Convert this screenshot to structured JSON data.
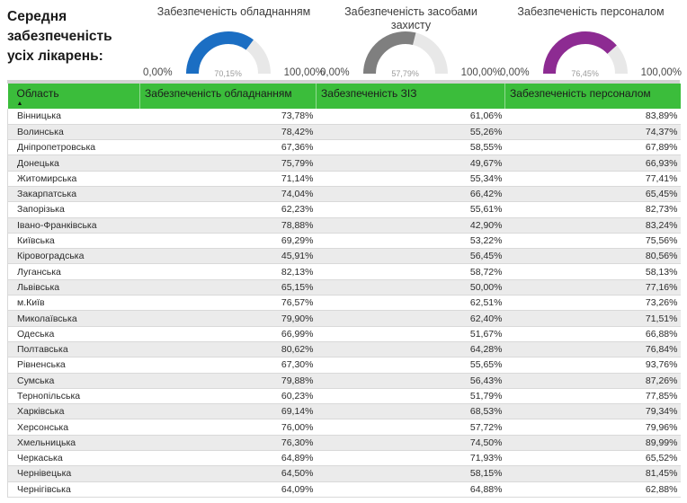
{
  "header": {
    "title": "Середня\nзабезпеченість\nусіх лікарень:"
  },
  "gauges": [
    {
      "title": "Забезпеченість обладнанням",
      "value": 70.15,
      "value_label": "70,15%",
      "min_label": "0,00%",
      "max_label": "100,00%",
      "color": "#1b6ec3"
    },
    {
      "title": "Забезпеченість засобами захисту",
      "value": 57.79,
      "value_label": "57,79%",
      "min_label": "0,00%",
      "max_label": "100,00%",
      "color": "#7f7f7f"
    },
    {
      "title": "Забезпеченість персоналом",
      "value": 76.45,
      "value_label": "76,45%",
      "min_label": "0,00%",
      "max_label": "100,00%",
      "color": "#8d2b92"
    }
  ],
  "table": {
    "columns": [
      "Область",
      "Забезпеченість обладнанням",
      "Забезпеченість ЗІЗ",
      "Забезпеченість персоналом"
    ],
    "sort_icon": "▲",
    "rows": [
      {
        "region": "Вінницька",
        "equipment": "73,78%",
        "ppe": "61,06%",
        "personnel": "83,89%"
      },
      {
        "region": "Волинська",
        "equipment": "78,42%",
        "ppe": "55,26%",
        "personnel": "74,37%"
      },
      {
        "region": "Дніпропетровська",
        "equipment": "67,36%",
        "ppe": "58,55%",
        "personnel": "67,89%"
      },
      {
        "region": "Донецька",
        "equipment": "75,79%",
        "ppe": "49,67%",
        "personnel": "66,93%"
      },
      {
        "region": "Житомирська",
        "equipment": "71,14%",
        "ppe": "55,34%",
        "personnel": "77,41%"
      },
      {
        "region": "Закарпатська",
        "equipment": "74,04%",
        "ppe": "66,42%",
        "personnel": "65,45%"
      },
      {
        "region": "Запорізька",
        "equipment": "62,23%",
        "ppe": "55,61%",
        "personnel": "82,73%"
      },
      {
        "region": "Івано-Франківська",
        "equipment": "78,88%",
        "ppe": "42,90%",
        "personnel": "83,24%"
      },
      {
        "region": "Київська",
        "equipment": "69,29%",
        "ppe": "53,22%",
        "personnel": "75,56%"
      },
      {
        "region": "Кіровоградська",
        "equipment": "45,91%",
        "ppe": "56,45%",
        "personnel": "80,56%"
      },
      {
        "region": "Луганська",
        "equipment": "82,13%",
        "ppe": "58,72%",
        "personnel": "58,13%"
      },
      {
        "region": "Львівська",
        "equipment": "65,15%",
        "ppe": "50,00%",
        "personnel": "77,16%"
      },
      {
        "region": "м.Київ",
        "equipment": "76,57%",
        "ppe": "62,51%",
        "personnel": "73,26%"
      },
      {
        "region": "Миколаївська",
        "equipment": "79,90%",
        "ppe": "62,40%",
        "personnel": "71,51%"
      },
      {
        "region": "Одеська",
        "equipment": "66,99%",
        "ppe": "51,67%",
        "personnel": "66,88%"
      },
      {
        "region": "Полтавська",
        "equipment": "80,62%",
        "ppe": "64,28%",
        "personnel": "76,84%"
      },
      {
        "region": "Рівненська",
        "equipment": "67,30%",
        "ppe": "55,65%",
        "personnel": "93,76%"
      },
      {
        "region": "Сумська",
        "equipment": "79,88%",
        "ppe": "56,43%",
        "personnel": "87,26%"
      },
      {
        "region": "Тернопільська",
        "equipment": "60,23%",
        "ppe": "51,79%",
        "personnel": "77,85%"
      },
      {
        "region": "Харківська",
        "equipment": "69,14%",
        "ppe": "68,53%",
        "personnel": "79,34%"
      },
      {
        "region": "Херсонська",
        "equipment": "76,00%",
        "ppe": "57,72%",
        "personnel": "79,96%"
      },
      {
        "region": "Хмельницька",
        "equipment": "76,30%",
        "ppe": "74,50%",
        "personnel": "89,99%"
      },
      {
        "region": "Черкаська",
        "equipment": "64,89%",
        "ppe": "71,93%",
        "personnel": "65,52%"
      },
      {
        "region": "Чернівецька",
        "equipment": "64,50%",
        "ppe": "58,15%",
        "personnel": "81,45%"
      },
      {
        "region": "Чернігівська",
        "equipment": "64,09%",
        "ppe": "64,88%",
        "personnel": "62,88%"
      }
    ]
  },
  "chart_data": [
    {
      "type": "gauge",
      "title": "Забезпеченість обладнанням",
      "value": 70.15,
      "min": 0,
      "max": 100,
      "unit": "%",
      "min_label": "0,00%",
      "max_label": "100,00%",
      "color": "#1b6ec3"
    },
    {
      "type": "gauge",
      "title": "Забезпеченість засобами захисту",
      "value": 57.79,
      "min": 0,
      "max": 100,
      "unit": "%",
      "min_label": "0,00%",
      "max_label": "100,00%",
      "color": "#7f7f7f"
    },
    {
      "type": "gauge",
      "title": "Забезпеченість персоналом",
      "value": 76.45,
      "min": 0,
      "max": 100,
      "unit": "%",
      "min_label": "0,00%",
      "max_label": "100,00%",
      "color": "#8d2b92"
    },
    {
      "type": "table",
      "columns": [
        "Область",
        "Забезпеченість обладнанням",
        "Забезпеченість ЗІЗ",
        "Забезпеченість персоналом"
      ],
      "sort": {
        "column": "Область",
        "direction": "ascending"
      },
      "rows": [
        [
          "Вінницька",
          73.78,
          61.06,
          83.89
        ],
        [
          "Волинська",
          78.42,
          55.26,
          74.37
        ],
        [
          "Дніпропетровська",
          67.36,
          58.55,
          67.89
        ],
        [
          "Донецька",
          75.79,
          49.67,
          66.93
        ],
        [
          "Житомирська",
          71.14,
          55.34,
          77.41
        ],
        [
          "Закарпатська",
          74.04,
          66.42,
          65.45
        ],
        [
          "Запорізька",
          62.23,
          55.61,
          82.73
        ],
        [
          "Івано-Франківська",
          78.88,
          42.9,
          83.24
        ],
        [
          "Київська",
          69.29,
          53.22,
          75.56
        ],
        [
          "Кіровоградська",
          45.91,
          56.45,
          80.56
        ],
        [
          "Луганська",
          82.13,
          58.72,
          58.13
        ],
        [
          "Львівська",
          65.15,
          50.0,
          77.16
        ],
        [
          "м.Київ",
          76.57,
          62.51,
          73.26
        ],
        [
          "Миколаївська",
          79.9,
          62.4,
          71.51
        ],
        [
          "Одеська",
          66.99,
          51.67,
          66.88
        ],
        [
          "Полтавська",
          80.62,
          64.28,
          76.84
        ],
        [
          "Рівненська",
          67.3,
          55.65,
          93.76
        ],
        [
          "Сумська",
          79.88,
          56.43,
          87.26
        ],
        [
          "Тернопільська",
          60.23,
          51.79,
          77.85
        ],
        [
          "Харківська",
          69.14,
          68.53,
          79.34
        ],
        [
          "Херсонська",
          76.0,
          57.72,
          79.96
        ],
        [
          "Хмельницька",
          76.3,
          74.5,
          89.99
        ],
        [
          "Черкаська",
          64.89,
          71.93,
          65.52
        ],
        [
          "Чернівецька",
          64.5,
          58.15,
          81.45
        ],
        [
          "Чернігівська",
          64.09,
          64.88,
          62.88
        ]
      ]
    }
  ]
}
